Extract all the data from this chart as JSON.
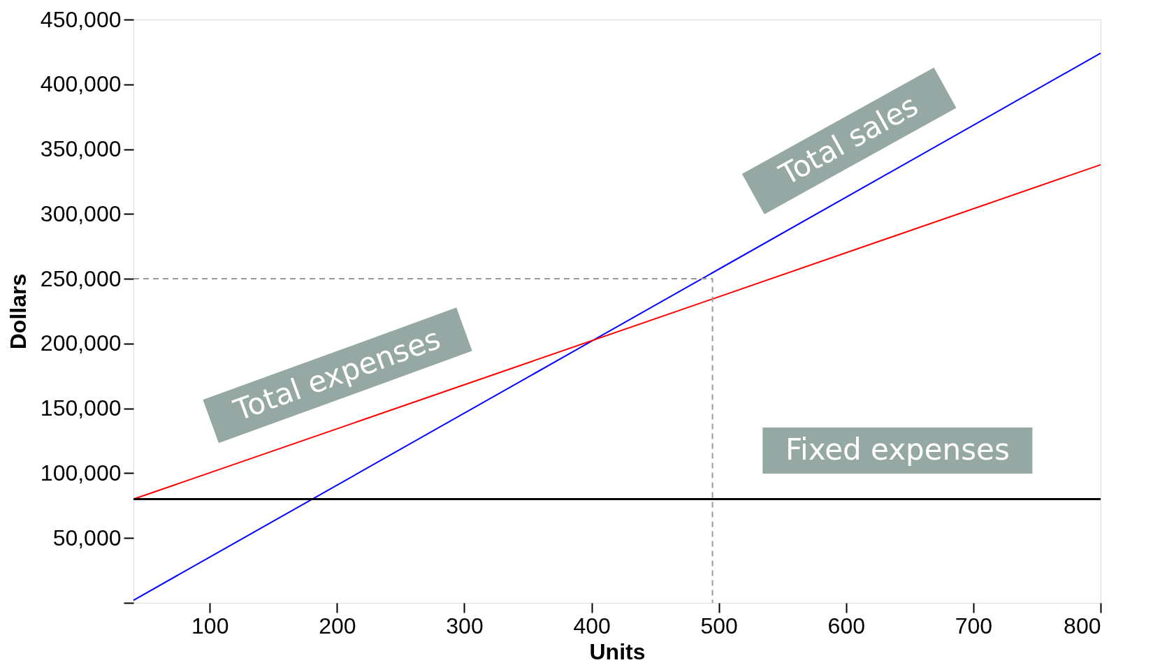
{
  "chart_data": {
    "type": "line",
    "xlabel": "Units",
    "ylabel": "Dollars",
    "xlim": [
      40,
      800
    ],
    "ylim": [
      0,
      450000
    ],
    "xticks": [
      100,
      200,
      300,
      400,
      500,
      600,
      700,
      800
    ],
    "yticks": [
      {
        "value": 0,
        "label": null
      },
      {
        "value": 50000,
        "label": "50,000"
      },
      {
        "value": 100000,
        "label": "100,000"
      },
      {
        "value": 150000,
        "label": "150,000"
      },
      {
        "value": 200000,
        "label": "200,000"
      },
      {
        "value": 250000,
        "label": "250,000"
      },
      {
        "value": 300000,
        "label": "300,000"
      },
      {
        "value": 350000,
        "label": "350,000"
      },
      {
        "value": 400000,
        "label": "400,000"
      },
      {
        "value": 450000,
        "label": "450,000"
      }
    ],
    "grid": false,
    "marker": "none",
    "series": [
      {
        "color": "#0000ff",
        "x": [
          40,
          800
        ],
        "values": [
          2000,
          424000
        ]
      },
      {
        "color": "#ff0000",
        "x": [
          40,
          800
        ],
        "values": [
          80000,
          338000
        ]
      },
      {
        "color": "#999999",
        "x": [
          40,
          495,
          495
        ],
        "values": [
          250000,
          250000,
          0
        ],
        "line_style": "dashed"
      }
    ],
    "ref_lines": [
      {
        "axis": "y",
        "value": 80000,
        "color": "#000000"
      }
    ],
    "annotations": [
      "Total expenses",
      "Total sales",
      "Fixed expenses"
    ]
  }
}
